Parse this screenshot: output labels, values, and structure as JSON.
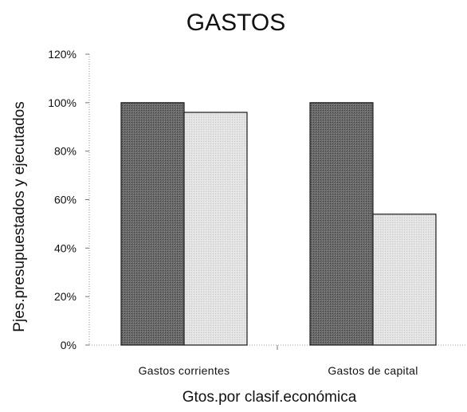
{
  "chart_data": {
    "type": "bar",
    "title": "GASTOS",
    "xlabel": "Gtos.por clasif.económica",
    "ylabel": "Pjes.presupuestados y ejecutados",
    "categories": [
      "Gastos corrientes",
      "Gastos de capital"
    ],
    "series": [
      {
        "values": [
          100,
          100
        ],
        "color": "#5a5a5a"
      },
      {
        "values": [
          96,
          54
        ],
        "color": "#dcdcdc"
      }
    ],
    "ylim": [
      0,
      120
    ],
    "yticks": [
      0,
      20,
      40,
      60,
      80,
      100,
      120
    ],
    "ytick_labels": [
      "0%",
      "20%",
      "40%",
      "60%",
      "80%",
      "100%",
      "120%"
    ],
    "grid": false,
    "legend": "none"
  }
}
